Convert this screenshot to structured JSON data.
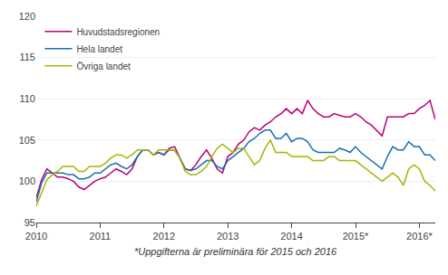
{
  "chart_data": {
    "type": "line",
    "annotations": [
      "*Uppgifterna är preliminära för 2015 och 2016"
    ],
    "categories": [
      "2010",
      null,
      null,
      null,
      null,
      null,
      null,
      null,
      null,
      null,
      null,
      null,
      "2011",
      null,
      null,
      null,
      null,
      null,
      null,
      null,
      null,
      null,
      null,
      null,
      "2012",
      null,
      null,
      null,
      null,
      null,
      null,
      null,
      null,
      null,
      null,
      null,
      "2013",
      null,
      null,
      null,
      null,
      null,
      null,
      null,
      null,
      null,
      null,
      null,
      "2014",
      null,
      null,
      null,
      null,
      null,
      null,
      null,
      null,
      null,
      null,
      null,
      "2015*",
      null,
      null,
      null,
      null,
      null,
      null,
      null,
      null,
      null,
      null,
      null,
      "2016*",
      null,
      null,
      null
    ],
    "series": [
      {
        "name": "Huvudstadsregionen",
        "color": "#bb0077",
        "values": [
          98.0,
          100.2,
          101.5,
          101.0,
          100.5,
          100.5,
          100.3,
          100.0,
          99.3,
          99.0,
          99.5,
          100.0,
          100.3,
          100.5,
          101.0,
          101.5,
          101.2,
          100.8,
          101.5,
          103.0,
          103.8,
          103.8,
          103.2,
          103.5,
          103.2,
          104.0,
          104.2,
          102.8,
          101.5,
          101.3,
          102.0,
          103.0,
          103.8,
          102.8,
          101.5,
          101.0,
          103.0,
          103.5,
          104.5,
          105.0,
          106.0,
          106.5,
          106.2,
          106.8,
          107.2,
          107.8,
          108.2,
          108.8,
          108.2,
          108.8,
          108.2,
          109.8,
          108.8,
          108.2,
          107.8,
          107.8,
          108.2,
          108.0,
          107.8,
          107.8,
          108.2,
          107.8,
          107.2,
          106.8,
          106.2,
          105.5,
          107.8,
          107.8,
          107.8,
          107.8,
          108.2,
          108.2,
          108.8,
          109.2,
          109.8,
          107.5
        ]
      },
      {
        "name": "Hela landet",
        "color": "#1a6faf",
        "values": [
          97.5,
          99.8,
          101.0,
          101.0,
          101.0,
          101.0,
          100.8,
          100.8,
          100.3,
          100.3,
          100.5,
          101.0,
          101.0,
          101.5,
          102.0,
          102.2,
          101.8,
          101.5,
          102.0,
          103.0,
          103.8,
          103.8,
          103.2,
          103.5,
          103.2,
          103.8,
          103.8,
          102.8,
          101.5,
          101.3,
          101.5,
          102.0,
          102.5,
          102.5,
          101.8,
          101.5,
          102.5,
          103.0,
          103.5,
          104.0,
          104.8,
          105.2,
          105.8,
          106.2,
          106.2,
          105.2,
          105.2,
          105.8,
          104.8,
          105.2,
          105.2,
          104.8,
          103.8,
          103.5,
          103.5,
          103.5,
          103.5,
          104.0,
          103.8,
          103.5,
          104.2,
          103.5,
          103.0,
          102.5,
          102.0,
          101.5,
          103.0,
          104.2,
          103.8,
          103.8,
          104.8,
          104.2,
          104.2,
          103.2,
          103.2,
          102.5
        ]
      },
      {
        "name": "Övriga landet",
        "color": "#a8b400",
        "values": [
          97.0,
          98.5,
          100.2,
          100.8,
          101.2,
          101.8,
          101.8,
          101.8,
          101.2,
          101.2,
          101.8,
          101.8,
          101.8,
          102.2,
          102.8,
          103.2,
          103.2,
          102.8,
          103.2,
          103.8,
          103.8,
          103.8,
          103.2,
          103.8,
          103.8,
          103.8,
          103.8,
          102.8,
          101.2,
          100.8,
          100.8,
          101.2,
          101.8,
          103.0,
          104.0,
          104.5,
          104.0,
          103.5,
          104.0,
          104.0,
          103.0,
          102.0,
          102.5,
          104.0,
          105.0,
          103.5,
          103.5,
          103.5,
          103.0,
          103.0,
          103.0,
          103.0,
          102.5,
          102.5,
          102.5,
          103.0,
          103.0,
          102.5,
          102.5,
          102.5,
          102.5,
          102.0,
          101.5,
          101.0,
          100.5,
          100.0,
          100.5,
          101.0,
          100.5,
          99.5,
          101.5,
          102.0,
          101.5,
          100.0,
          99.5,
          98.8
        ]
      }
    ],
    "ylim": [
      95,
      120
    ],
    "yticks": [
      95,
      100,
      105,
      110,
      115,
      120
    ],
    "grid": true,
    "legend": "upper left"
  }
}
